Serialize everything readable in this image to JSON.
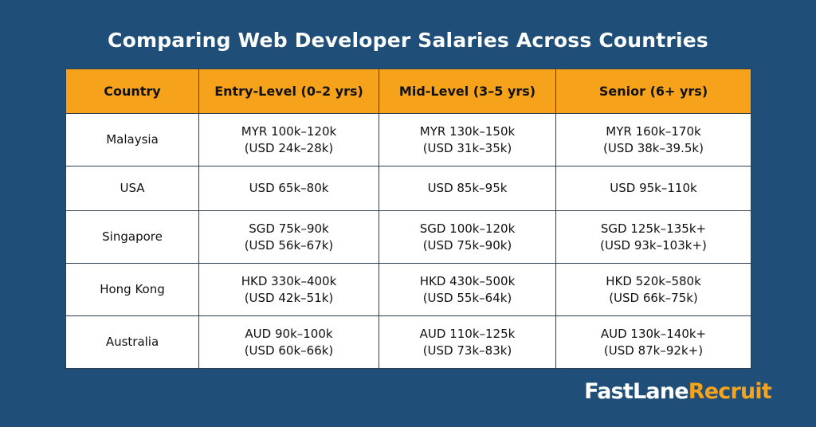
{
  "title": "Comparing Web Developer Salaries Across Countries",
  "table": {
    "headers": [
      "Country",
      "Entry-Level (0–2 yrs)",
      "Mid-Level (3–5 yrs)",
      "Senior (6+ yrs)"
    ],
    "rows": [
      {
        "country": "Malaysia",
        "entry": [
          "MYR 100k–120k",
          "(USD 24k–28k)"
        ],
        "mid": [
          "MYR 130k–150k",
          "(USD 31k–35k)"
        ],
        "senior": [
          "MYR 160k–170k",
          "(USD 38k–39.5k)"
        ]
      },
      {
        "country": "USA",
        "entry": [
          "USD 65k–80k"
        ],
        "mid": [
          "USD 85k–95k"
        ],
        "senior": [
          "USD 95k–110k"
        ]
      },
      {
        "country": "Singapore",
        "entry": [
          "SGD 75k–90k",
          "(USD 56k–67k)"
        ],
        "mid": [
          "SGD 100k–120k",
          "(USD 75k–90k)"
        ],
        "senior": [
          "SGD 125k–135k+",
          "(USD 93k–103k+)"
        ]
      },
      {
        "country": "Hong Kong",
        "entry": [
          "HKD 330k–400k",
          "(USD 42k–51k)"
        ],
        "mid": [
          "HKD 430k–500k",
          "(USD 55k–64k)"
        ],
        "senior": [
          "HKD 520k–580k",
          "(USD 66k–75k)"
        ]
      },
      {
        "country": "Australia",
        "entry": [
          "AUD 90k–100k",
          "(USD 60k–66k)"
        ],
        "mid": [
          "AUD 110k–125k",
          "(USD 73k–83k)"
        ],
        "senior": [
          "AUD 130k–140k+",
          "(USD 87k–92k+)"
        ]
      }
    ]
  },
  "logo": {
    "part1": "FastLane",
    "part2": "Recruit"
  },
  "colors": {
    "background": "#1f4e79",
    "header": "#f7a21b",
    "accent": "#f7a21b"
  }
}
